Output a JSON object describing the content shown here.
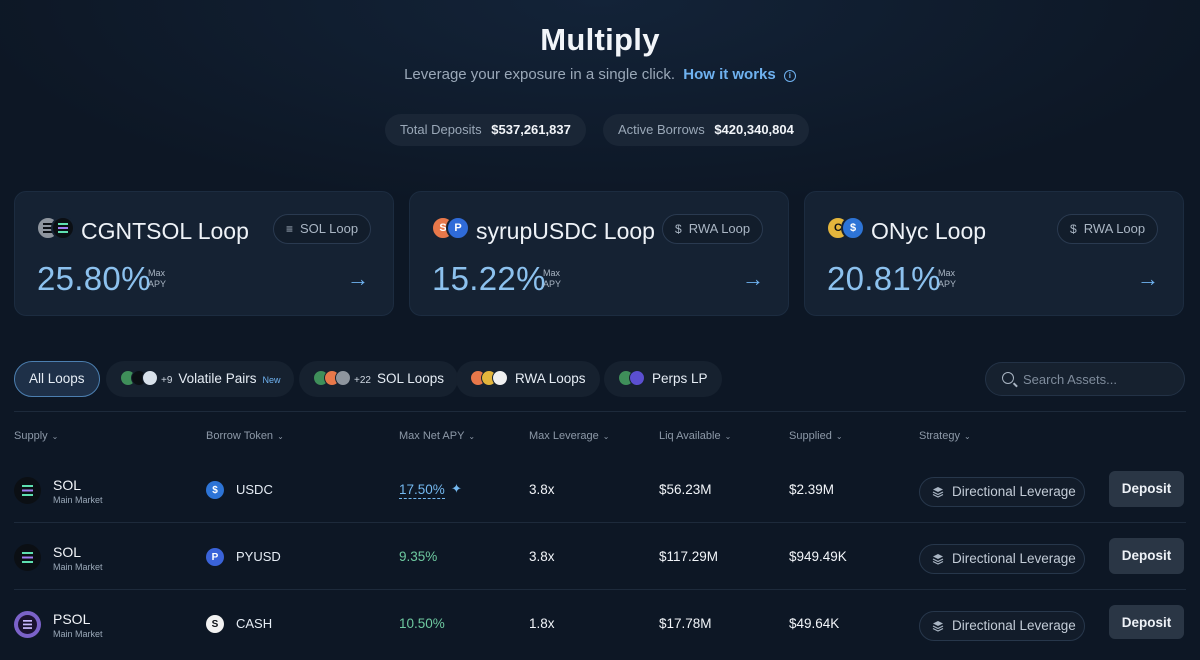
{
  "header": {
    "title": "Multiply",
    "subtitle": "Leverage your exposure in a single click.",
    "how_link": "How it works"
  },
  "stats": [
    {
      "label": "Total Deposits",
      "value": "$537,261,837"
    },
    {
      "label": "Active Borrows",
      "value": "$420,340,804"
    }
  ],
  "featured": [
    {
      "name": "CGNTSOL Loop",
      "tag": "SOL Loop",
      "apy": "25.80%",
      "apy_label_1": "Max",
      "apy_label_2": "APY",
      "coin_colors": [
        "#8e959e",
        "#0b0f14"
      ]
    },
    {
      "name": "syrupUSDC Loop",
      "tag": "RWA Loop",
      "apy": "15.22%",
      "apy_label_1": "Max",
      "apy_label_2": "APY",
      "coin_colors": [
        "#e8784a",
        "#2f6bd8"
      ]
    },
    {
      "name": "ONyc Loop",
      "tag": "RWA Loop",
      "apy": "20.81%",
      "apy_label_1": "Max",
      "apy_label_2": "APY",
      "coin_colors": [
        "#e3b53c",
        "#2d74d6"
      ]
    }
  ],
  "filters": {
    "all": "All Loops",
    "volatile": {
      "label": "Volatile Pairs",
      "count": "+9",
      "badge": "New"
    },
    "sol": {
      "label": "SOL Loops",
      "count": "+22"
    },
    "rwa": {
      "label": "RWA Loops"
    },
    "perps": {
      "label": "Perps LP"
    }
  },
  "search": {
    "placeholder": "Search Assets..."
  },
  "columns": [
    "Supply",
    "Borrow Token",
    "Max Net APY",
    "Max Leverage",
    "Liq Available",
    "Supplied",
    "Strategy"
  ],
  "rows": [
    {
      "asset": "SOL",
      "market": "Main Market",
      "borrow": "USDC",
      "apy": "17.50%",
      "leverage": "3.8x",
      "liq": "$56.23M",
      "supplied": "$2.39M",
      "strategy": "Directional Leverage",
      "action": "Deposit"
    },
    {
      "asset": "SOL",
      "market": "Main Market",
      "borrow": "PYUSD",
      "apy": "9.35%",
      "leverage": "3.8x",
      "liq": "$117.29M",
      "supplied": "$949.49K",
      "strategy": "Directional Leverage",
      "action": "Deposit"
    },
    {
      "asset": "PSOL",
      "market": "Main Market",
      "borrow": "CASH",
      "apy": "10.50%",
      "leverage": "1.8x",
      "liq": "$17.78M",
      "supplied": "$49.64K",
      "strategy": "Directional Leverage",
      "action": "Deposit"
    }
  ],
  "colors": {
    "accent": "#6fb2f0",
    "positive": "#6ec9a0",
    "background": "#0d1725"
  }
}
